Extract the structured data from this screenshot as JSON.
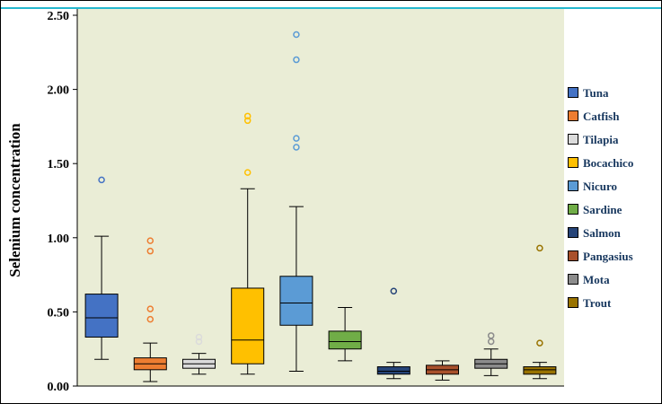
{
  "chart_data": {
    "type": "box",
    "title": "",
    "ylabel": "Selenium concentration",
    "xlabel": "",
    "ylim": [
      0,
      2.5
    ],
    "yticks": [
      "0.00",
      "0.50",
      "1.00",
      "1.50",
      "2.00",
      "2.50"
    ],
    "grid": false,
    "legend_position": "right",
    "colors": {
      "plot_background": "#EAEDD6",
      "top_border": "#25B8CE",
      "axis": "#000000",
      "legend_text": "#17375E",
      "tick_text": "#000000"
    },
    "series": [
      {
        "name": "Tuna",
        "color": "#4472C4",
        "whisker_low": 0.18,
        "q1": 0.33,
        "median": 0.46,
        "q3": 0.62,
        "whisker_high": 1.01,
        "outliers": [
          1.39
        ]
      },
      {
        "name": "Catfish",
        "color": "#ED7D31",
        "whisker_low": 0.03,
        "q1": 0.11,
        "median": 0.15,
        "q3": 0.19,
        "whisker_high": 0.29,
        "outliers": [
          0.45,
          0.52,
          0.91,
          0.98
        ]
      },
      {
        "name": "Tilapia",
        "color": "#DBDBDB",
        "whisker_low": 0.08,
        "q1": 0.12,
        "median": 0.15,
        "q3": 0.18,
        "whisker_high": 0.22,
        "outliers": [
          0.3,
          0.33
        ]
      },
      {
        "name": "Bocachico",
        "color": "#FFC000",
        "whisker_low": 0.08,
        "q1": 0.15,
        "median": 0.31,
        "q3": 0.66,
        "whisker_high": 1.33,
        "outliers": [
          1.44,
          1.79,
          1.82
        ]
      },
      {
        "name": "Nicuro",
        "color": "#5B9BD5",
        "whisker_low": 0.1,
        "q1": 0.41,
        "median": 0.56,
        "q3": 0.74,
        "whisker_high": 1.21,
        "outliers": [
          1.61,
          1.67,
          2.2,
          2.37
        ]
      },
      {
        "name": "Sardine",
        "color": "#70AD47",
        "whisker_low": 0.17,
        "q1": 0.25,
        "median": 0.3,
        "q3": 0.37,
        "whisker_high": 0.53,
        "outliers": []
      },
      {
        "name": "Salmon",
        "color": "#264478",
        "whisker_low": 0.05,
        "q1": 0.08,
        "median": 0.1,
        "q3": 0.13,
        "whisker_high": 0.16,
        "outliers": [
          0.64
        ]
      },
      {
        "name": "Pangasius",
        "color": "#A9512C",
        "whisker_low": 0.04,
        "q1": 0.08,
        "median": 0.11,
        "q3": 0.14,
        "whisker_high": 0.17,
        "outliers": []
      },
      {
        "name": "Mota",
        "color": "#8C8C8C",
        "whisker_low": 0.07,
        "q1": 0.12,
        "median": 0.15,
        "q3": 0.18,
        "whisker_high": 0.25,
        "outliers": [
          0.3,
          0.34
        ]
      },
      {
        "name": "Trout",
        "color": "#997300",
        "whisker_low": 0.05,
        "q1": 0.08,
        "median": 0.11,
        "q3": 0.13,
        "whisker_high": 0.16,
        "outliers": [
          0.29,
          0.93
        ]
      }
    ]
  }
}
